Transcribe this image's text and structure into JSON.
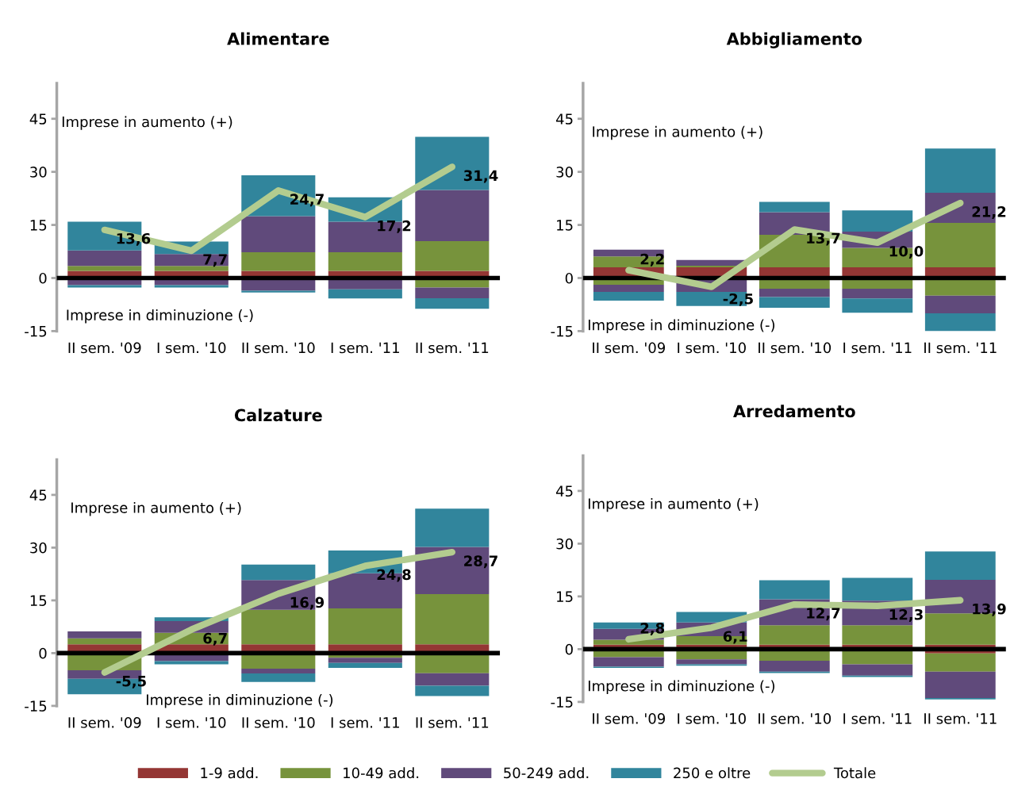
{
  "chart_data": [
    {
      "type": "bar",
      "title": "Alimentare",
      "stacked": true,
      "legend": "bottom",
      "categories": [
        "II sem. '09",
        "I sem. '10",
        "II sem. '10",
        "I sem. '11",
        "II sem. '11"
      ],
      "ylim": [
        -15,
        55
      ],
      "yticks": [
        -15,
        0,
        15,
        30,
        45
      ],
      "grid": false,
      "annotations": [
        "Imprese in aumento (+)",
        "Imprese in diminuzione (-)"
      ],
      "ref_lines": [
        {
          "axis": "y",
          "value": 0,
          "color": "#000000"
        }
      ],
      "series": [
        {
          "name": "1-9 add.",
          "color": "#943634",
          "values": [
            2.0,
            2.0,
            2.0,
            2.0,
            2.0
          ]
        },
        {
          "name": "10-49 add.",
          "color": "#77933c",
          "values": [
            1.4,
            1.4,
            5.3,
            5.3,
            8.4
          ]
        },
        {
          "name": "50-249 add.",
          "color": "#604a7b",
          "values": [
            4.4,
            3.4,
            10.2,
            8.6,
            14.5
          ]
        },
        {
          "name": "250 e oltre",
          "color": "#31859c",
          "values": [
            8.1,
            3.5,
            11.5,
            6.9,
            15.0
          ]
        },
        {
          "color": "#77933c",
          "values": [
            null,
            null,
            null,
            null,
            -2.7
          ]
        },
        {
          "color": "#604a7b",
          "values": [
            -2.0,
            -2.0,
            -3.6,
            -3.2,
            -3.0
          ]
        },
        {
          "color": "#31859c",
          "values": [
            -0.7,
            -0.7,
            -0.5,
            -2.6,
            -3.0
          ]
        },
        {
          "name": "Totale",
          "type": "line",
          "color": "#b3cc8f",
          "values": [
            13.6,
            7.7,
            24.7,
            17.2,
            31.4
          ],
          "value_labels": [
            "13,6",
            "7,7",
            "24,7",
            "17,2",
            "31,4"
          ]
        }
      ]
    },
    {
      "type": "bar",
      "title": "Abbigliamento",
      "stacked": true,
      "legend": "bottom",
      "categories": [
        "II sem. '09",
        "I sem. '10",
        "II sem. '10",
        "I sem. '11",
        "II sem. '11"
      ],
      "ylim": [
        -15,
        55
      ],
      "yticks": [
        -15,
        0,
        15,
        30,
        45
      ],
      "grid": false,
      "annotations": [
        "Imprese in aumento (+)",
        "Imprese in diminuzione (-)"
      ],
      "ref_lines": [
        {
          "axis": "y",
          "value": 0,
          "color": "#000000"
        }
      ],
      "series": [
        {
          "name": "1-9 add.",
          "color": "#943634",
          "values": [
            3.0,
            3.0,
            3.0,
            3.0,
            3.0
          ]
        },
        {
          "name": "10-49 add.",
          "color": "#77933c",
          "values": [
            3.1,
            0.5,
            9.2,
            5.5,
            12.6
          ]
        },
        {
          "name": "50-249 add.",
          "color": "#604a7b",
          "values": [
            1.9,
            1.6,
            6.4,
            4.6,
            8.5
          ]
        },
        {
          "name": "250 e oltre",
          "color": "#31859c",
          "values": [
            0,
            0,
            2.9,
            6.0,
            12.5
          ]
        },
        {
          "color": "#77933c",
          "values": [
            -1.9,
            null,
            -3.0,
            -3.0,
            -5.0
          ]
        },
        {
          "color": "#604a7b",
          "values": [
            -2.0,
            -3.9,
            -2.4,
            -2.8,
            -5.0
          ]
        },
        {
          "color": "#31859c",
          "values": [
            -2.5,
            -4.0,
            -3.0,
            -4.0,
            -5.0
          ]
        },
        {
          "name": "Totale",
          "type": "line",
          "color": "#b3cc8f",
          "values": [
            2.2,
            -2.5,
            13.7,
            10.0,
            21.2
          ],
          "value_labels": [
            "2,2",
            "-2,5",
            "13,7",
            "10,0",
            "21,2"
          ]
        }
      ]
    },
    {
      "type": "bar",
      "title": "Calzature",
      "stacked": true,
      "legend": "bottom",
      "categories": [
        "II sem. '09",
        "I sem. '10",
        "II sem. '10",
        "I sem. '11",
        "II sem. '11"
      ],
      "ylim": [
        -15,
        55
      ],
      "yticks": [
        -15,
        0,
        15,
        30,
        45
      ],
      "grid": false,
      "annotations": [
        "Imprese in aumento (+)",
        "Imprese in diminuzione (-)"
      ],
      "ref_lines": [
        {
          "axis": "y",
          "value": 0,
          "color": "#000000"
        }
      ],
      "series": [
        {
          "name": "1-9 add.",
          "color": "#943634",
          "values": [
            2.5,
            2.5,
            2.5,
            2.5,
            2.5
          ]
        },
        {
          "name": "10-49 add.",
          "color": "#77933c",
          "values": [
            1.7,
            3.3,
            9.8,
            10.2,
            14.3
          ]
        },
        {
          "name": "50-249 add.",
          "color": "#604a7b",
          "values": [
            2.0,
            3.3,
            8.5,
            10.0,
            13.4
          ]
        },
        {
          "name": "250 e oltre",
          "color": "#31859c",
          "values": [
            0,
            1.1,
            4.4,
            6.5,
            10.9
          ]
        },
        {
          "color": "#77933c",
          "values": [
            -4.9,
            null,
            -4.4,
            -1.3,
            -5.7
          ]
        },
        {
          "color": "#604a7b",
          "values": [
            -2.4,
            -2.3,
            -1.4,
            -1.5,
            -3.6
          ]
        },
        {
          "color": "#31859c",
          "values": [
            -4.4,
            -0.9,
            -2.4,
            -1.4,
            -2.9
          ]
        },
        {
          "name": "Totale",
          "type": "line",
          "color": "#b3cc8f",
          "values": [
            -5.5,
            6.7,
            16.9,
            24.8,
            28.7
          ],
          "value_labels": [
            "-5,5",
            "6,7",
            "16,9",
            "24,8",
            "28,7"
          ]
        }
      ]
    },
    {
      "type": "bar",
      "title": "Arredamento",
      "stacked": true,
      "legend": "bottom",
      "categories": [
        "II sem. '09",
        "I sem. '10",
        "II sem. '10",
        "I sem. '11",
        "II sem. '11"
      ],
      "ylim": [
        -15,
        55
      ],
      "yticks": [
        -15,
        0,
        15,
        30,
        45
      ],
      "grid": false,
      "annotations": [
        "Imprese in aumento (+)",
        "Imprese in diminuzione (-)"
      ],
      "ref_lines": [
        {
          "axis": "y",
          "value": 0,
          "color": "#000000"
        }
      ],
      "series": [
        {
          "name": "1-9 add.",
          "color": "#943634",
          "values": [
            1.3,
            1.3,
            1.3,
            1.3,
            1.3
          ]
        },
        {
          "name": "10-49 add.",
          "color": "#77933c",
          "values": [
            1.4,
            2.4,
            5.5,
            5.5,
            8.9
          ]
        },
        {
          "name": "50-249 add.",
          "color": "#604a7b",
          "values": [
            3.1,
            3.9,
            7.4,
            7.0,
            9.5
          ]
        },
        {
          "name": "250 e oltre",
          "color": "#31859c",
          "values": [
            1.8,
            3.0,
            5.4,
            6.5,
            8.1
          ]
        },
        {
          "color": "#943634",
          "values": [
            null,
            null,
            null,
            null,
            -1.2
          ]
        },
        {
          "color": "#77933c",
          "values": [
            -2.3,
            -2.9,
            -3.3,
            -4.3,
            -5.2
          ]
        },
        {
          "color": "#604a7b",
          "values": [
            -2.7,
            -1.4,
            -3.1,
            -3.2,
            -7.5
          ]
        },
        {
          "color": "#31859c",
          "values": [
            -0.3,
            -0.4,
            -0.4,
            -0.4,
            -0.4
          ]
        },
        {
          "name": "Totale",
          "type": "line",
          "color": "#b3cc8f",
          "values": [
            2.8,
            6.1,
            12.7,
            12.3,
            13.9
          ],
          "value_labels": [
            "2,8",
            "6,1",
            "12,7",
            "12,3",
            "13,9"
          ]
        }
      ]
    }
  ]
}
